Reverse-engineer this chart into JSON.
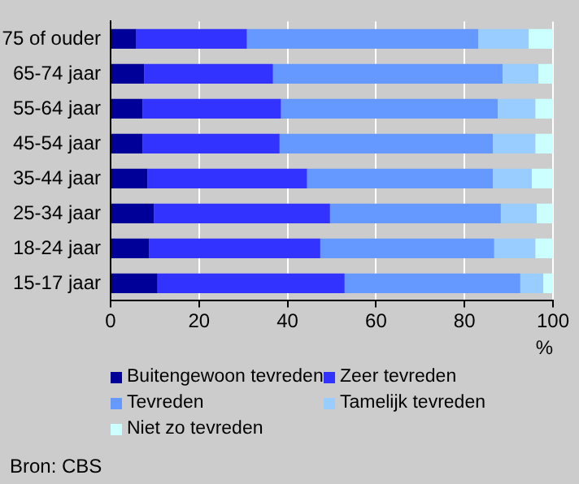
{
  "chart_data": {
    "type": "bar",
    "orientation": "horizontal",
    "stacked": true,
    "xlabel": "%",
    "categories": [
      "75 of ouder",
      "65-74 jaar",
      "55-64 jaar",
      "45-54 jaar",
      "35-44 jaar",
      "25-34 jaar",
      "18-24 jaar",
      "15-17 jaar"
    ],
    "series": [
      {
        "name": "Buitengewoon tevreden",
        "color": "#000099",
        "values": [
          5.8,
          7.6,
          7.2,
          7.2,
          8.3,
          9.8,
          8.7,
          10.6
        ]
      },
      {
        "name": "Zeer tevreden",
        "color": "#3333ff",
        "values": [
          25.0,
          29.1,
          31.3,
          31.0,
          36.1,
          39.8,
          38.7,
          42.3
        ]
      },
      {
        "name": "Tevreden",
        "color": "#6699ff",
        "values": [
          52.3,
          51.9,
          49.0,
          48.2,
          42.0,
          38.6,
          39.3,
          39.7
        ]
      },
      {
        "name": "Tamelijk tevreden",
        "color": "#99ccff",
        "values": [
          11.4,
          8.1,
          8.5,
          9.6,
          8.8,
          8.1,
          9.3,
          5.2
        ]
      },
      {
        "name": "Niet zo tevreden",
        "color": "#ccffff",
        "values": [
          5.5,
          3.3,
          4.0,
          4.0,
          4.8,
          3.7,
          4.0,
          2.2
        ]
      }
    ],
    "xlim": [
      0,
      100
    ],
    "xticks": [
      0,
      20,
      40,
      60,
      80,
      100
    ],
    "grid": "x",
    "legend": "bottom",
    "annotations": [
      "Bron: CBS"
    ]
  }
}
